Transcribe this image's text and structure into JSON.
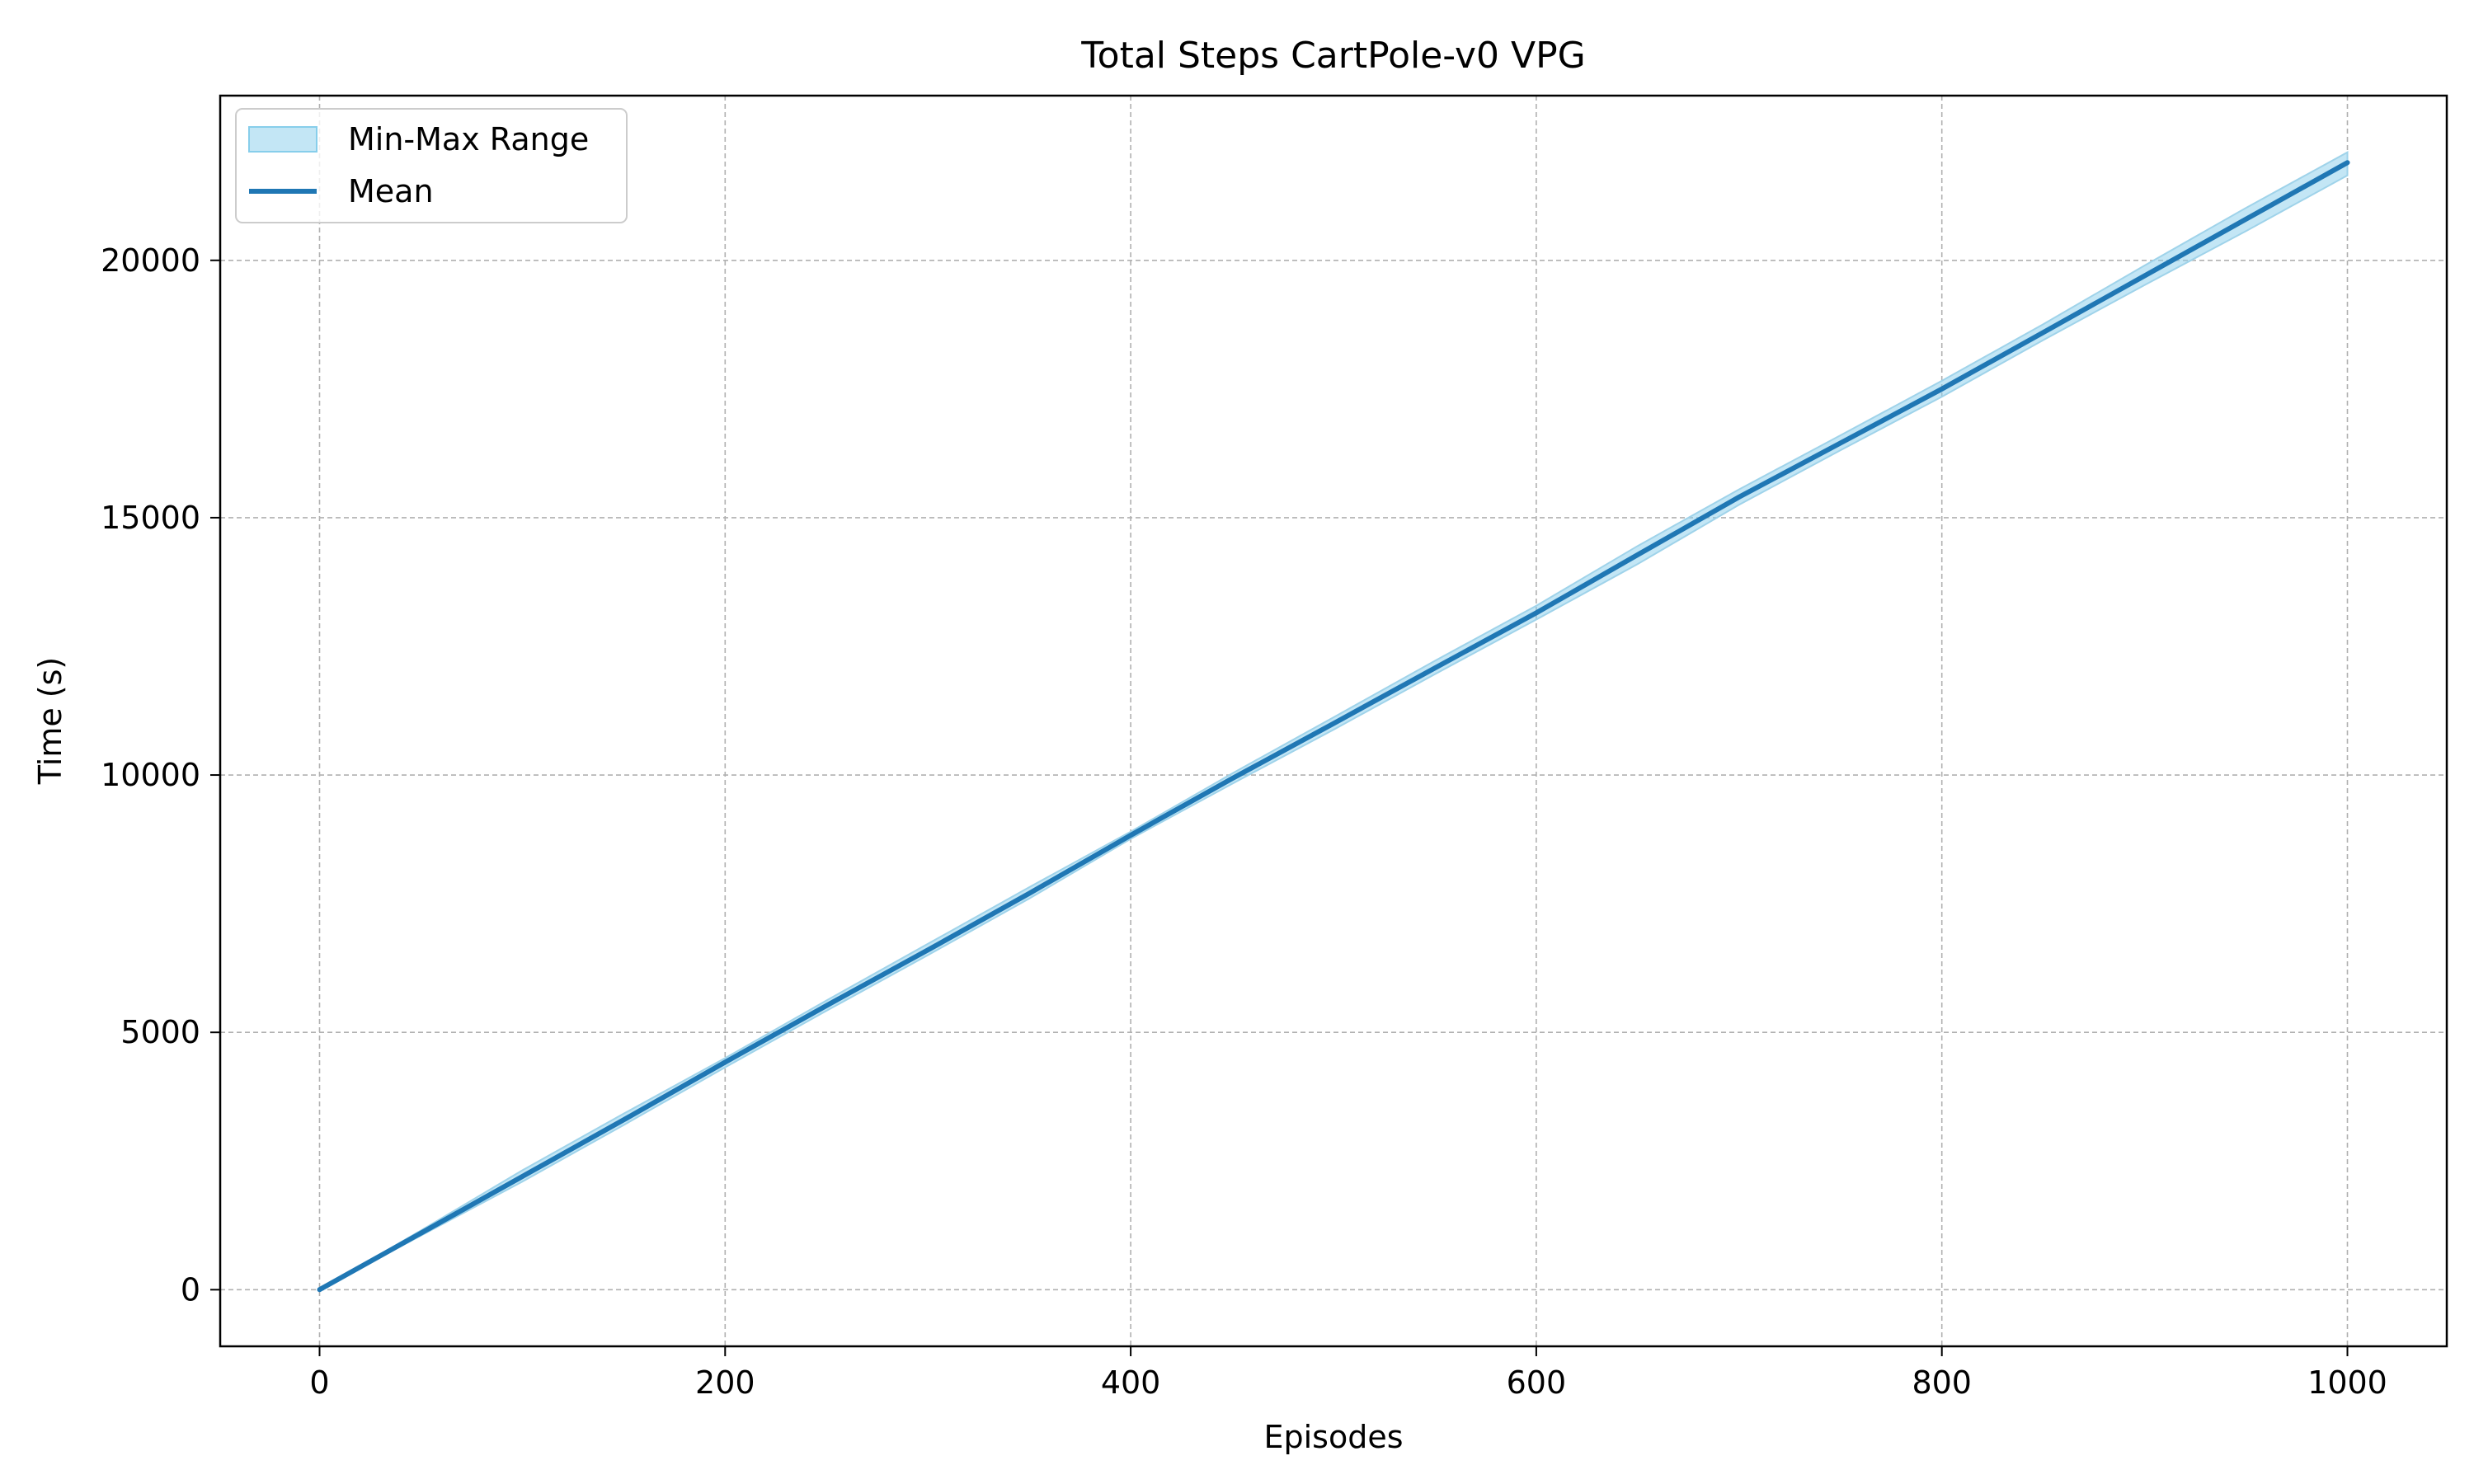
{
  "chart_data": {
    "type": "line",
    "title": "Total Steps CartPole-v0 VPG",
    "xlabel": "Episodes",
    "ylabel": "Time (s)",
    "xlim": [
      -49,
      1049
    ],
    "ylim": [
      -1100,
      23200
    ],
    "x_ticks": [
      0,
      200,
      400,
      600,
      800,
      1000
    ],
    "y_ticks": [
      0,
      5000,
      10000,
      15000,
      20000
    ],
    "grid": true,
    "legend_position": "top-left",
    "colors": {
      "mean": "#1f77b4",
      "range": "#87ceeb",
      "range_edge": "#9fd3ea",
      "grid": "#b0b0b0"
    },
    "x": [
      0,
      50,
      100,
      150,
      200,
      250,
      300,
      350,
      400,
      450,
      500,
      550,
      600,
      650,
      700,
      750,
      800,
      850,
      900,
      950,
      1000
    ],
    "series": [
      {
        "name": "Mean",
        "values": [
          0,
          1100,
          2200,
          3300,
          4420,
          5520,
          6600,
          7700,
          8830,
          9930,
          11000,
          12080,
          13150,
          14280,
          15400,
          16450,
          17500,
          18600,
          19700,
          20800,
          21900
        ]
      },
      {
        "name": "Min-Max Range",
        "role": "band",
        "lower": [
          0,
          1050,
          2100,
          3200,
          4320,
          5420,
          6500,
          7600,
          8760,
          9830,
          10880,
          11960,
          13020,
          14100,
          15250,
          16310,
          17350,
          18450,
          19520,
          20570,
          21650
        ],
        "upper": [
          0,
          1150,
          2320,
          3420,
          4500,
          5620,
          6720,
          7820,
          8900,
          10030,
          11120,
          12220,
          13290,
          14450,
          15550,
          16600,
          17660,
          18760,
          19900,
          21020,
          22100
        ]
      }
    ]
  }
}
